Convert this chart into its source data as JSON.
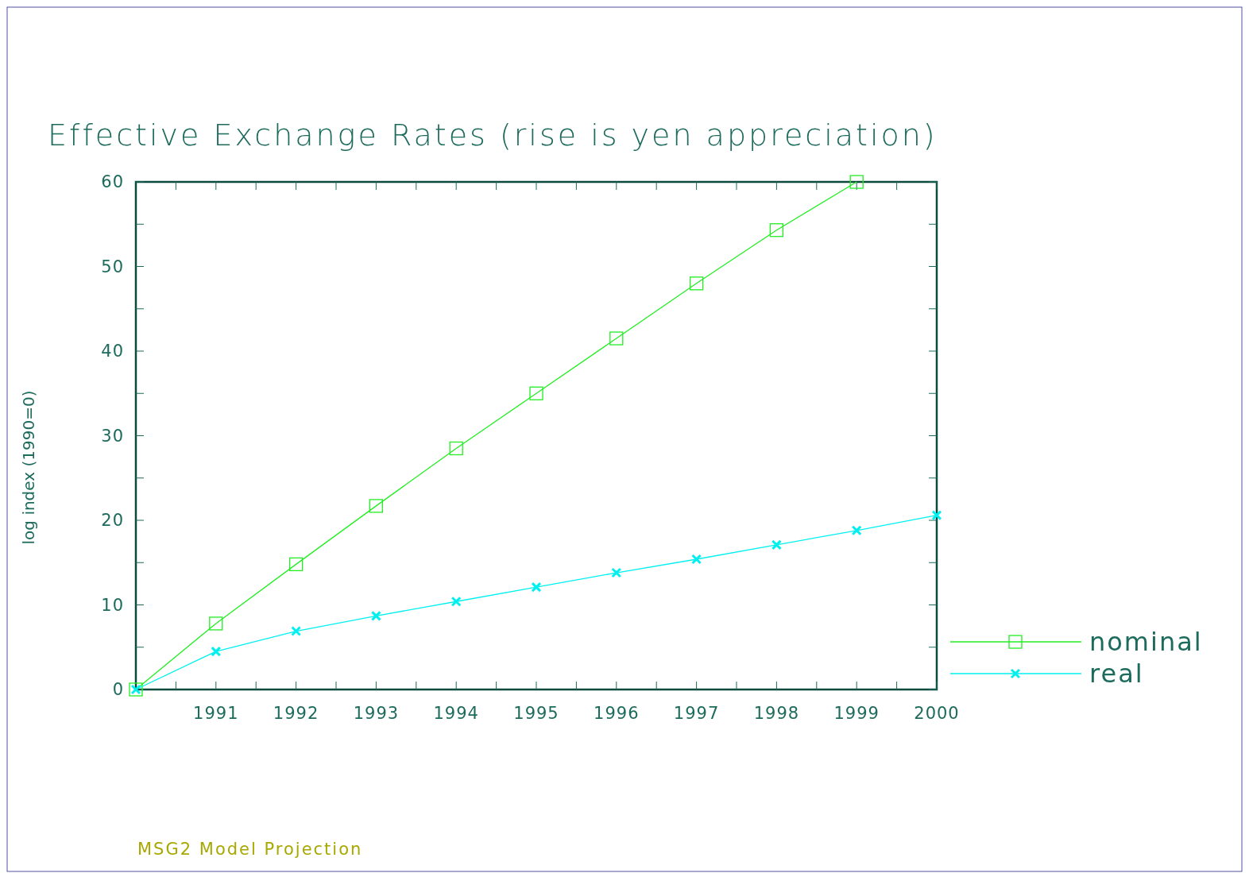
{
  "chart_data": {
    "type": "line",
    "title": "Effective Exchange Rates (rise is yen appreciation)",
    "ylabel": "log index (1990=0)",
    "x": [
      1990,
      1991,
      1992,
      1993,
      1994,
      1995,
      1996,
      1997,
      1998,
      1999,
      2000
    ],
    "series": [
      {
        "name": "nominal",
        "color": "#22ee22",
        "marker": "square",
        "values": [
          0,
          7.8,
          14.8,
          21.7,
          28.5,
          35.0,
          41.5,
          48.0,
          54.3,
          60,
          null
        ]
      },
      {
        "name": "real",
        "color": "#00f0f0",
        "marker": "cross",
        "values": [
          0,
          4.5,
          6.9,
          8.7,
          10.4,
          12.1,
          13.8,
          15.4,
          17.1,
          18.8,
          20.6
        ]
      }
    ],
    "xlim": [
      1990,
      2000
    ],
    "xticks": [
      {
        "value": 1990.5,
        "label": null
      },
      1991,
      {
        "value": 1991.5,
        "label": null
      },
      1992,
      {
        "value": 1992.5,
        "label": null
      },
      1993,
      {
        "value": 1993.5,
        "label": null
      },
      1994,
      {
        "value": 1994.5,
        "label": null
      },
      1995,
      {
        "value": 1995.5,
        "label": null
      },
      1996,
      {
        "value": 1996.5,
        "label": null
      },
      1997,
      {
        "value": 1997.5,
        "label": null
      },
      1998,
      {
        "value": 1998.5,
        "label": null
      },
      1999,
      {
        "value": 1999.5,
        "label": null
      },
      2000
    ],
    "ylim": [
      0,
      60
    ],
    "yticks": [
      0,
      {
        "value": 5,
        "label": null
      },
      10,
      {
        "value": 15,
        "label": null
      },
      20,
      {
        "value": 25,
        "label": null
      },
      30,
      {
        "value": 35,
        "label": null
      },
      40,
      {
        "value": 45,
        "label": null
      },
      50,
      {
        "value": 55,
        "label": null
      },
      60
    ],
    "grid": false,
    "legend": "bottom right",
    "line_style": "solid",
    "annotations": [
      "MSG2 Model Projection"
    ]
  }
}
